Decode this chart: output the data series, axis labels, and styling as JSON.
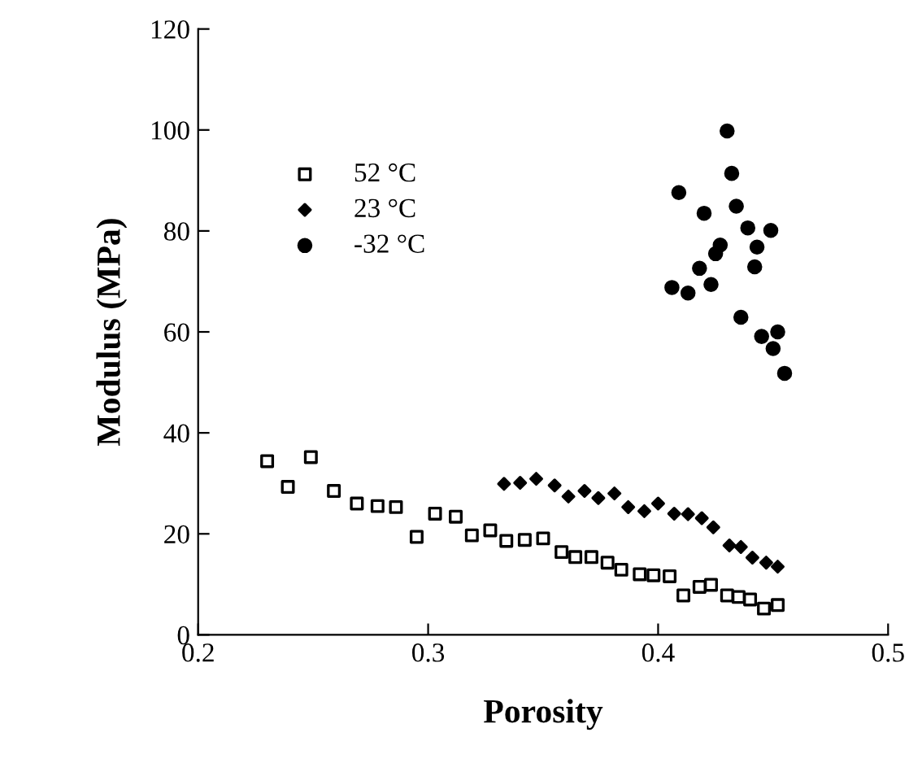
{
  "chart_data": {
    "type": "scatter",
    "xlabel": "Porosity",
    "ylabel": "Modulus (MPa)",
    "xlim": [
      0.2,
      0.5
    ],
    "xticks": [
      0.2,
      0.3,
      0.4,
      0.5
    ],
    "ylim": [
      0,
      120
    ],
    "yticks": [
      0,
      20,
      40,
      60,
      80,
      100,
      120
    ],
    "grid": false,
    "legend": "top left",
    "series": [
      {
        "name": "52 °C",
        "color": "#000000",
        "marker": "square",
        "x": [
          0.23,
          0.239,
          0.249,
          0.259,
          0.269,
          0.278,
          0.286,
          0.295,
          0.303,
          0.312,
          0.319,
          0.327,
          0.334,
          0.342,
          0.35,
          0.358,
          0.364,
          0.371,
          0.378,
          0.384,
          0.392,
          0.398,
          0.405,
          0.411,
          0.418,
          0.423,
          0.43,
          0.435,
          0.44,
          0.446,
          0.452
        ],
        "values": [
          34.4,
          29.3,
          35.2,
          28.5,
          26.0,
          25.5,
          25.3,
          19.4,
          24.0,
          23.4,
          19.7,
          20.7,
          18.6,
          18.8,
          19.1,
          16.4,
          15.4,
          15.4,
          14.3,
          12.9,
          12.0,
          11.8,
          11.6,
          7.8,
          9.5,
          9.9,
          7.8,
          7.5,
          7.0,
          5.2,
          5.9
        ]
      },
      {
        "name": "23 °C",
        "color": "#000000",
        "marker": "diamond",
        "x": [
          0.333,
          0.34,
          0.347,
          0.355,
          0.361,
          0.368,
          0.374,
          0.381,
          0.387,
          0.394,
          0.4,
          0.407,
          0.413,
          0.419,
          0.424,
          0.431,
          0.436,
          0.441,
          0.447,
          0.452
        ],
        "values": [
          29.9,
          30.1,
          30.9,
          29.6,
          27.4,
          28.5,
          27.1,
          28.0,
          25.3,
          24.5,
          26.0,
          24.0,
          23.9,
          23.1,
          21.3,
          17.7,
          17.4,
          15.3,
          14.3,
          13.5
        ]
      },
      {
        "name": "-32 °C",
        "color": "#000000",
        "marker": "circle",
        "x": [
          0.43,
          0.432,
          0.409,
          0.434,
          0.42,
          0.439,
          0.449,
          0.427,
          0.425,
          0.443,
          0.418,
          0.442,
          0.423,
          0.406,
          0.413,
          0.436,
          0.445,
          0.452,
          0.45,
          0.455
        ],
        "values": [
          99.8,
          91.4,
          87.6,
          84.9,
          83.5,
          80.6,
          80.1,
          77.2,
          75.5,
          76.8,
          72.6,
          72.9,
          69.4,
          68.8,
          67.7,
          62.9,
          59.1,
          60.0,
          56.7,
          51.8
        ]
      }
    ]
  }
}
